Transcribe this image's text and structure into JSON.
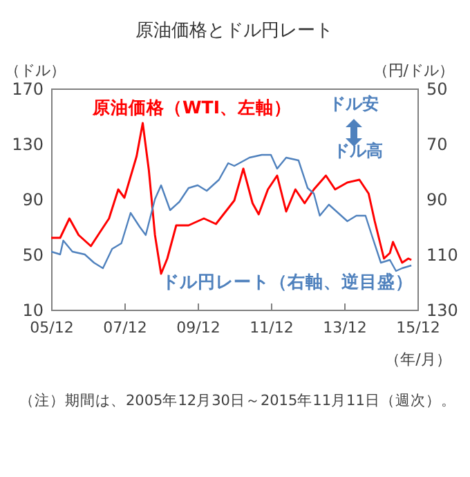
{
  "chart_data": {
    "type": "line",
    "title": "原油価格とドル円レート",
    "xlabel": "（年/月）",
    "ylabel": "（ドル）",
    "y2label": "（円/ドル）",
    "xlim": [
      "2005-12",
      "2015-12"
    ],
    "xticks": [
      {
        "value": "2005-12",
        "label": "05/12"
      },
      {
        "value": "2007-12",
        "label": "07/12"
      },
      {
        "value": "2009-12",
        "label": "09/12"
      },
      {
        "value": "2011-12",
        "label": "11/12"
      },
      {
        "value": "2013-12",
        "label": "13/12"
      },
      {
        "value": "2015-12",
        "label": "15/12"
      }
    ],
    "ylim": [
      10,
      170
    ],
    "yticks": [
      10,
      50,
      90,
      130,
      170
    ],
    "y2lim": [
      130,
      50
    ],
    "y2ticks": [
      50,
      70,
      90,
      110,
      130
    ],
    "annotations": [
      "ドル安",
      "ドル高",
      "（注）期間は、2005年12月30日～2015年11月11日（週次）。"
    ],
    "series": [
      {
        "name": "原油価格（WTI、左軸）",
        "color": "#ff0000",
        "x": [
          "2005-12",
          "2006-03",
          "2006-06",
          "2006-09",
          "2007-01",
          "2007-04",
          "2007-07",
          "2007-10",
          "2007-12",
          "2008-04",
          "2008-06",
          "2008-08",
          "2008-10",
          "2008-12",
          "2009-02",
          "2009-05",
          "2009-09",
          "2010-02",
          "2010-06",
          "2010-12",
          "2011-03",
          "2011-06",
          "2011-08",
          "2011-11",
          "2012-02",
          "2012-05",
          "2012-08",
          "2012-11",
          "2013-02",
          "2013-06",
          "2013-09",
          "2014-01",
          "2014-05",
          "2014-08",
          "2014-10",
          "2015-01",
          "2015-03",
          "2015-04",
          "2015-07",
          "2015-09",
          "2015-10"
        ],
        "values": [
          62,
          62,
          76,
          64,
          56,
          66,
          76,
          97,
          91,
          121,
          145,
          111,
          64,
          36,
          47,
          71,
          71,
          76,
          72,
          89,
          112,
          87,
          79,
          97,
          107,
          81,
          97,
          87,
          97,
          107,
          97,
          102,
          104,
          94,
          74,
          47,
          51,
          59,
          44,
          47,
          46
        ]
      },
      {
        "name": "ドル円レート（右軸、逆目盛）",
        "color": "#4f81bd",
        "axis": "y2",
        "x": [
          "2005-12",
          "2006-03",
          "2006-04",
          "2006-07",
          "2006-11",
          "2007-02",
          "2007-05",
          "2007-08",
          "2007-11",
          "2008-02",
          "2008-05",
          "2008-07",
          "2008-10",
          "2008-12",
          "2009-03",
          "2009-06",
          "2009-09",
          "2009-12",
          "2010-03",
          "2010-07",
          "2010-10",
          "2010-12",
          "2011-05",
          "2011-09",
          "2011-12",
          "2012-02",
          "2012-05",
          "2012-09",
          "2012-12",
          "2013-02",
          "2013-04",
          "2013-07",
          "2013-10",
          "2014-01",
          "2014-04",
          "2014-07",
          "2014-09",
          "2014-12",
          "2015-03",
          "2015-05",
          "2015-07",
          "2015-10"
        ],
        "values": [
          109,
          110,
          105,
          109,
          110,
          113,
          115,
          108,
          106,
          95,
          100,
          103,
          90,
          85,
          94,
          91,
          86,
          85,
          87,
          83,
          77,
          78,
          75,
          74,
          74,
          79,
          75,
          76,
          86,
          88,
          96,
          92,
          95,
          98,
          96,
          96,
          103,
          113,
          112,
          116,
          115,
          114
        ]
      }
    ]
  }
}
